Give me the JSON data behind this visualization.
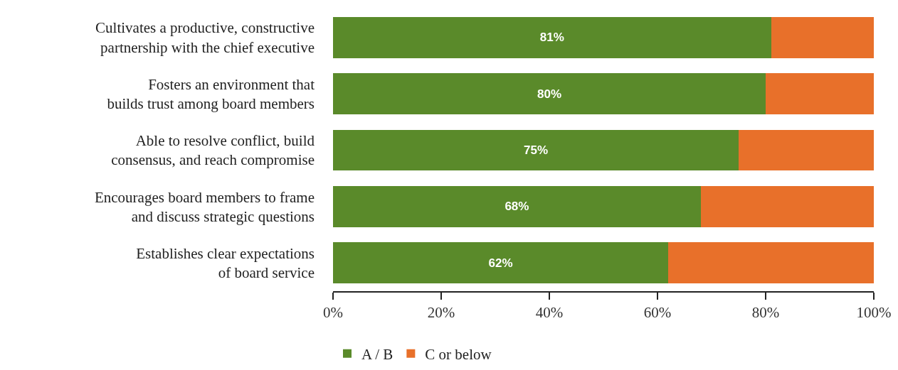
{
  "chart_data": {
    "type": "bar",
    "orientation": "horizontal",
    "stacked": true,
    "categories": [
      "Cultivates a productive, constructive\npartnership with the chief executive",
      "Fosters an environment that\nbuilds trust among board members",
      "Able to resolve conflict, build\nconsensus, and reach compromise",
      "Encourages board members to frame\nand discuss strategic questions",
      "Establishes clear expectations\nof board service"
    ],
    "series": [
      {
        "name": "A / B",
        "color": "#5a8a2a",
        "values": [
          81,
          80,
          75,
          68,
          62
        ],
        "value_labels": [
          "81%",
          "80%",
          "75%",
          "68%",
          "62%"
        ]
      },
      {
        "name": "C or below",
        "color": "#e8702a",
        "values": [
          19,
          20,
          25,
          32,
          38
        ]
      }
    ],
    "xlim": [
      0,
      100
    ],
    "xticks": [
      {
        "value": 0,
        "label": "0%"
      },
      {
        "value": 20,
        "label": "20%"
      },
      {
        "value": 40,
        "label": "40%"
      },
      {
        "value": 60,
        "label": "60%"
      },
      {
        "value": 80,
        "label": "80%"
      },
      {
        "value": 100,
        "label": "100%"
      }
    ],
    "legend": "bottom"
  }
}
